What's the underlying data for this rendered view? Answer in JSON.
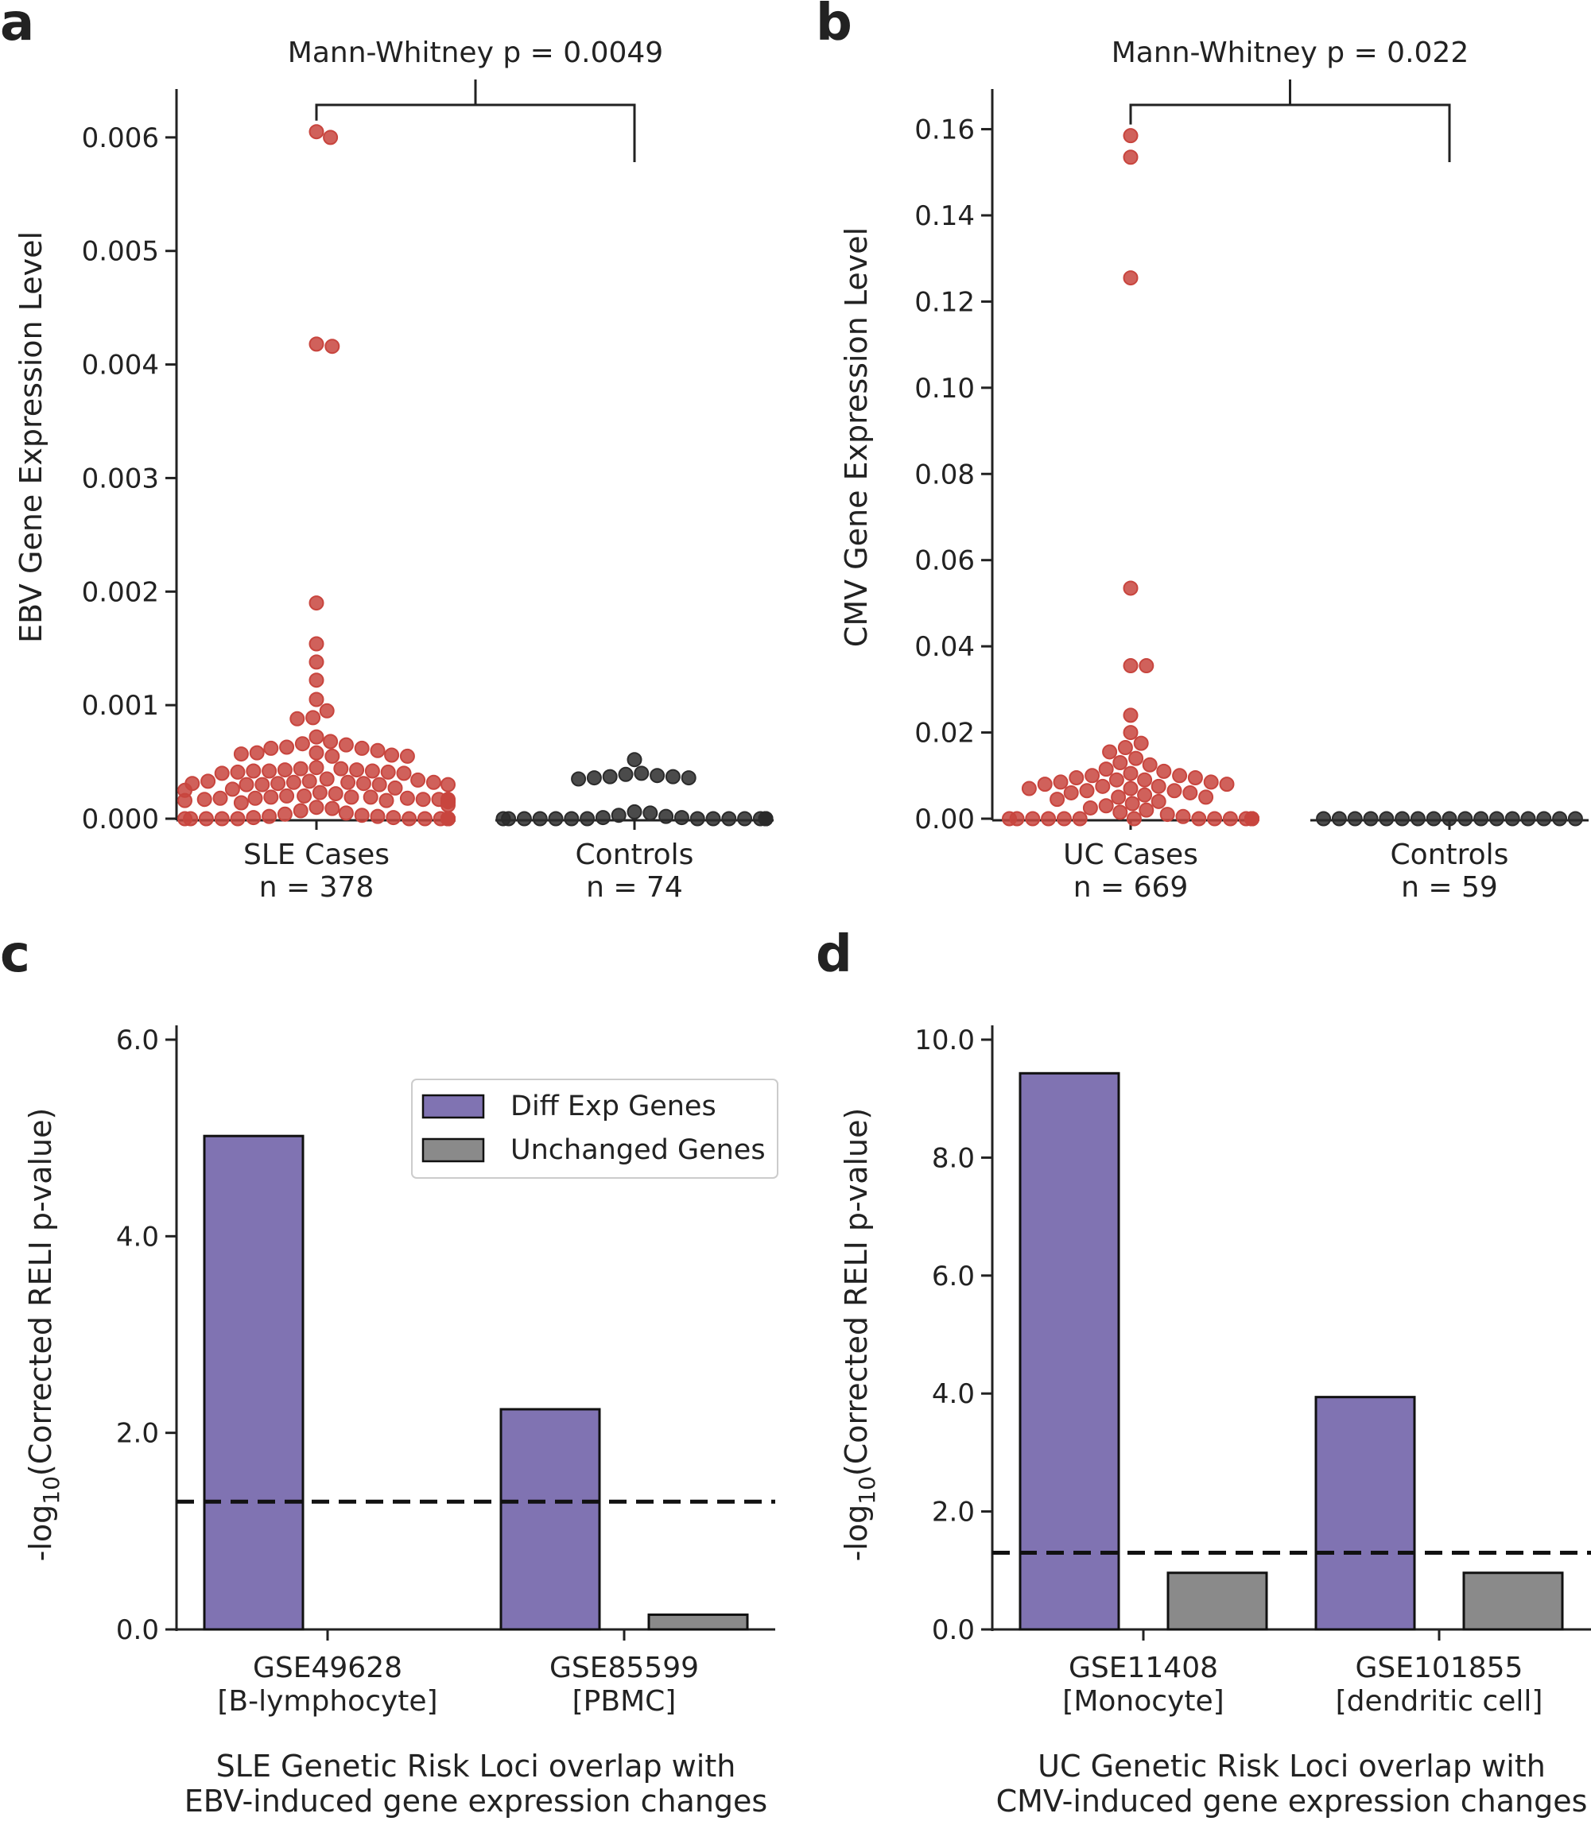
{
  "colors": {
    "cases": "#c8453e",
    "controls": "#2b2b2b",
    "diff_exp": "#8073b2",
    "unchanged": "#8a8a8a",
    "axis": "#222222"
  },
  "panels": {
    "a": {
      "letter": "a"
    },
    "b": {
      "letter": "b"
    },
    "c": {
      "letter": "c"
    },
    "d": {
      "letter": "d"
    }
  },
  "chart_data": [
    {
      "id": "a",
      "type": "scatter",
      "subtype": "swarm",
      "ylabel": "EBV Gene Expression Level",
      "ylim": [
        0,
        0.0063
      ],
      "yticks": [
        0,
        0.001,
        0.002,
        0.003,
        0.004,
        0.005,
        0.006
      ],
      "ytick_labels": [
        "0.000",
        "0.001",
        "0.002",
        "0.003",
        "0.004",
        "0.005",
        "0.006"
      ],
      "annotation": "Mann-Whitney p = 0.0049",
      "groups": [
        {
          "label": "SLE Cases",
          "n_label": "n = 378",
          "color_key": "cases",
          "values": [
            0.00605,
            0.006,
            0.00418,
            0.00416,
            0.0019,
            0.00154,
            0.00138,
            0.00122,
            0.00105,
            0.00095,
            0.00088,
            0.00089,
            0.00072,
            0.00068,
            0.00066,
            0.00065,
            0.00062,
            0.00063,
            0.00062,
            0.0006,
            0.00058,
            0.00058,
            0.00057,
            0.00056,
            0.00055,
            0.00055,
            0.00045,
            0.00044,
            0.00044,
            0.00043,
            0.00043,
            0.00042,
            0.00042,
            0.00042,
            0.00041,
            0.00041,
            0.0004,
            0.0004,
            0.00035,
            0.00034,
            0.00033,
            0.00033,
            0.00032,
            0.00032,
            0.00032,
            0.00031,
            0.00031,
            0.00031,
            0.0003,
            0.0003,
            0.0003,
            0.0003,
            0.00027,
            0.00026,
            0.00025,
            0.00023,
            0.00022,
            0.0002,
            0.0002,
            0.00019,
            0.00019,
            0.00019,
            0.00018,
            0.00018,
            0.00018,
            0.00017,
            0.00017,
            0.00017,
            0.00017,
            0.00016,
            0.00016,
            0.00016,
            0.00016,
            0.00016,
            0.00015,
            0.00015,
            0.00015,
            0.00014,
            0.00012,
            0.0001,
            9e-05,
            7e-05,
            5e-05,
            4e-05,
            3e-05,
            2e-05,
            2e-05,
            1e-05,
            1e-05,
            0,
            0,
            0,
            0,
            0,
            0,
            0,
            0,
            0,
            0,
            0,
            0,
            0,
            0,
            0,
            0,
            0,
            0,
            0
          ]
        },
        {
          "label": "Controls",
          "n_label": "n = 74",
          "color_key": "controls",
          "values": [
            0.00052,
            0.0004,
            0.00039,
            0.00038,
            0.00037,
            0.00037,
            0.00036,
            0.00036,
            0.00035,
            6e-05,
            5e-05,
            3e-05,
            2e-05,
            1e-05,
            1e-05,
            0,
            0,
            0,
            0,
            0,
            0,
            0,
            0,
            0,
            0,
            0,
            0,
            0,
            0,
            0,
            0
          ]
        }
      ]
    },
    {
      "id": "b",
      "type": "scatter",
      "subtype": "swarm",
      "ylabel": "CMV Gene Expression Level",
      "ylim": [
        0,
        0.166
      ],
      "yticks": [
        0,
        0.02,
        0.04,
        0.06,
        0.08,
        0.1,
        0.12,
        0.14,
        0.16
      ],
      "ytick_labels": [
        "0.00",
        "0.02",
        "0.04",
        "0.06",
        "0.08",
        "0.10",
        "0.12",
        "0.14",
        "0.16"
      ],
      "annotation": "Mann-Whitney p = 0.022",
      "groups": [
        {
          "label": "UC Cases",
          "n_label": "n = 669",
          "color_key": "cases",
          "values": [
            0.1585,
            0.1535,
            0.1255,
            0.0535,
            0.0355,
            0.0355,
            0.024,
            0.02,
            0.0175,
            0.0165,
            0.0155,
            0.014,
            0.013,
            0.0125,
            0.0115,
            0.011,
            0.0105,
            0.01,
            0.01,
            0.0095,
            0.0095,
            0.009,
            0.009,
            0.0085,
            0.0085,
            0.008,
            0.008,
            0.0075,
            0.0075,
            0.007,
            0.007,
            0.0065,
            0.0065,
            0.006,
            0.006,
            0.0055,
            0.005,
            0.005,
            0.0045,
            0.004,
            0.0035,
            0.003,
            0.0025,
            0.002,
            0.0015,
            0.001,
            0.0005,
            0,
            0,
            0,
            0,
            0,
            0,
            0,
            0,
            0,
            0,
            0,
            0,
            0,
            0,
            0,
            0,
            0,
            0,
            0,
            0,
            0,
            0,
            0
          ]
        },
        {
          "label": "Controls",
          "n_label": "n = 59",
          "color_key": "controls",
          "values": [
            0,
            0,
            0,
            0,
            0,
            0,
            0,
            0,
            0,
            0,
            0,
            0,
            0,
            0,
            0,
            0,
            0
          ]
        }
      ]
    },
    {
      "id": "c",
      "type": "bar",
      "ylabel_prefix": "-log",
      "ylabel_sub": "10",
      "ylabel_suffix": "(Corrected RELI p-value)",
      "ylim": [
        0,
        6.0
      ],
      "yticks": [
        0,
        2,
        4,
        6
      ],
      "ytick_labels": [
        "0.0",
        "2.0",
        "4.0",
        "6.0"
      ],
      "categories": [
        "GSE49628",
        "GSE85599"
      ],
      "category_sublabels": [
        "[B-lymphocyte]",
        "[PBMC]"
      ],
      "series": [
        {
          "name": "Diff Exp Genes",
          "color_key": "diff_exp",
          "values": [
            5.02,
            2.24
          ]
        },
        {
          "name": "Unchanged Genes",
          "color_key": "unchanged",
          "values": [
            0.0,
            0.15
          ]
        }
      ],
      "threshold": 1.3,
      "legend_position": "upper right",
      "xtitle": [
        "SLE Genetic Risk Loci overlap with",
        "EBV-induced gene expression changes"
      ]
    },
    {
      "id": "d",
      "type": "bar",
      "ylabel_prefix": "-log",
      "ylabel_sub": "10",
      "ylabel_suffix": "(Corrected RELI p-value)",
      "ylim": [
        0,
        10.0
      ],
      "yticks": [
        0,
        2,
        4,
        6,
        8,
        10
      ],
      "ytick_labels": [
        "0.0",
        "2.0",
        "4.0",
        "6.0",
        "8.0",
        "10.0"
      ],
      "categories": [
        "GSE11408",
        "GSE101855"
      ],
      "category_sublabels": [
        "[Monocyte]",
        "[dendritic cell]"
      ],
      "series": [
        {
          "name": "Diff Exp Genes",
          "color_key": "diff_exp",
          "values": [
            9.43,
            3.94
          ]
        },
        {
          "name": "Unchanged Genes",
          "color_key": "unchanged",
          "values": [
            0.96,
            0.96
          ]
        }
      ],
      "threshold": 1.3,
      "xtitle": [
        "UC Genetic Risk Loci overlap with",
        "CMV-induced gene expression changes"
      ]
    }
  ]
}
